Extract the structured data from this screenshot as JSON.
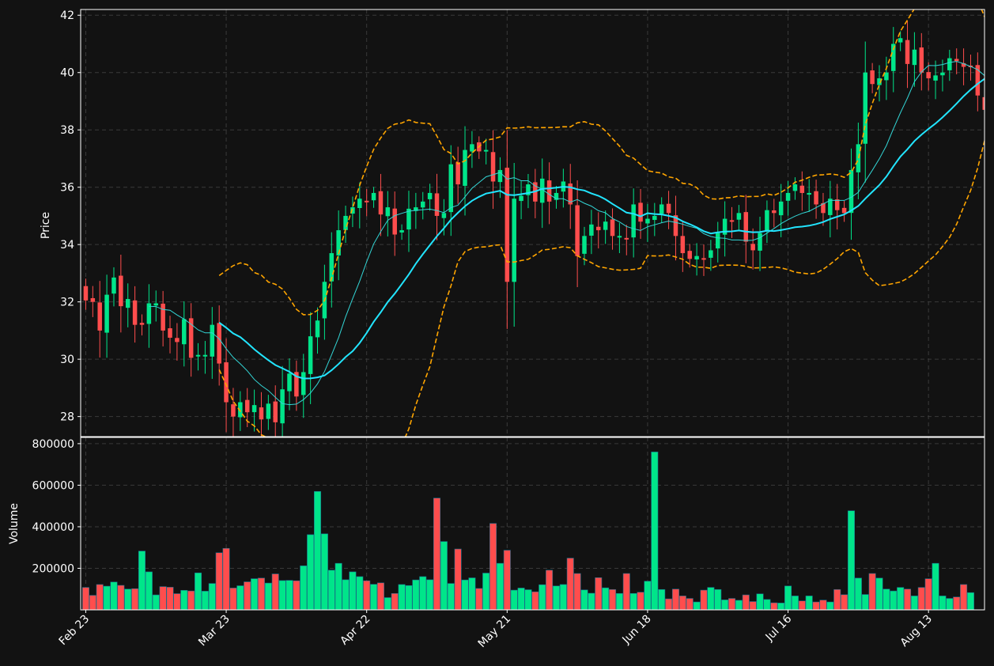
{
  "chart_data": {
    "type": "candlestick",
    "price_panel": {
      "ylabel": "Price",
      "ylim": [
        27.3,
        42.2
      ],
      "yticks": [
        28,
        30,
        32,
        34,
        36,
        38,
        40,
        42
      ],
      "grid": true
    },
    "volume_panel": {
      "ylabel": "Volume",
      "ylim": [
        0,
        830000
      ],
      "yticks": [
        200000,
        400000,
        600000,
        800000
      ],
      "grid": true
    },
    "x_ticks": [
      {
        "label": "Feb 23",
        "index": 0
      },
      {
        "label": "Mar 23",
        "index": 20
      },
      {
        "label": "Apr 22",
        "index": 40
      },
      {
        "label": "May 21",
        "index": 60
      },
      {
        "label": "Jun 18",
        "index": 80
      },
      {
        "label": "Jul 16",
        "index": 100
      },
      {
        "label": "Aug 13",
        "index": 120
      }
    ],
    "colors": {
      "background": "#121212",
      "up": "#00e58a",
      "down": "#ff4d4d",
      "sma_fast": "#33d6d6",
      "sma_slow": "#22e5ff",
      "bollinger": "#ffa500",
      "grid": "#3a3a3a"
    },
    "closes": [
      32.05,
      32.0,
      31.0,
      32.25,
      32.85,
      31.85,
      32.1,
      31.2,
      31.2,
      31.95,
      31.95,
      31.0,
      30.75,
      30.6,
      31.4,
      30.05,
      30.15,
      30.15,
      31.2,
      29.85,
      28.5,
      28.0,
      28.5,
      28.15,
      28.4,
      27.9,
      28.45,
      27.8,
      28.95,
      29.5,
      28.7,
      29.55,
      30.8,
      31.35,
      32.7,
      33.7,
      34.5,
      35.0,
      35.3,
      35.6,
      35.5,
      35.8,
      35.05,
      35.3,
      34.35,
      34.5,
      35.25,
      35.3,
      35.5,
      35.8,
      35.0,
      35.1,
      36.8,
      36.1,
      37.3,
      37.5,
      37.25,
      37.3,
      36.2,
      36.6,
      32.7,
      35.6,
      35.7,
      36.1,
      35.5,
      36.3,
      35.5,
      35.8,
      36.2,
      35.4,
      33.6,
      34.3,
      34.7,
      34.5,
      34.8,
      34.3,
      34.3,
      34.2,
      35.4,
      34.8,
      34.9,
      35.0,
      35.4,
      35.1,
      34.3,
      33.7,
      33.5,
      33.6,
      33.5,
      33.8,
      34.4,
      34.9,
      34.8,
      35.1,
      34.1,
      33.8,
      34.4,
      35.2,
      35.1,
      35.5,
      35.8,
      36.1,
      35.8,
      35.8,
      35.4,
      35.1,
      35.6,
      35.2,
      35.1,
      36.6,
      37.5,
      40.0,
      39.6,
      39.8,
      40.0,
      41.0,
      41.2,
      40.3,
      40.8,
      40.0,
      39.8,
      39.9,
      40.0,
      40.5,
      40.4,
      40.2,
      40.2,
      39.2,
      38.7
    ],
    "volumes": [
      108000,
      70000,
      122000,
      114000,
      134000,
      118000,
      100000,
      102000,
      283000,
      183000,
      72000,
      112000,
      109000,
      78000,
      94000,
      91000,
      178000,
      90000,
      127000,
      275000,
      296000,
      105000,
      116000,
      135000,
      150000,
      153000,
      129000,
      173000,
      141000,
      142000,
      140000,
      212000,
      362000,
      570000,
      366000,
      191000,
      224000,
      145000,
      183000,
      160000,
      140000,
      123000,
      130000,
      59000,
      79000,
      122000,
      117000,
      144000,
      160000,
      145000,
      538000,
      329000,
      127000,
      293000,
      144000,
      154000,
      103000,
      177000,
      416000,
      224000,
      287000,
      95000,
      105000,
      97000,
      87000,
      121000,
      191000,
      115000,
      122000,
      249000,
      175000,
      96000,
      80000,
      155000,
      106000,
      98000,
      79000,
      175000,
      79000,
      85000,
      138000,
      760000,
      98000,
      53000,
      100000,
      67000,
      55000,
      38000,
      95000,
      108000,
      98000,
      48000,
      55000,
      46000,
      72000,
      40000,
      77000,
      50000,
      34000,
      33000,
      115000,
      67000,
      43000,
      67000,
      38000,
      47000,
      38000,
      98000,
      73000,
      477000,
      153000,
      74000,
      175000,
      153000,
      100000,
      91000,
      108000,
      100000,
      67000,
      108000,
      150000,
      224000,
      67000,
      55000,
      62000,
      122000,
      83000
    ]
  }
}
